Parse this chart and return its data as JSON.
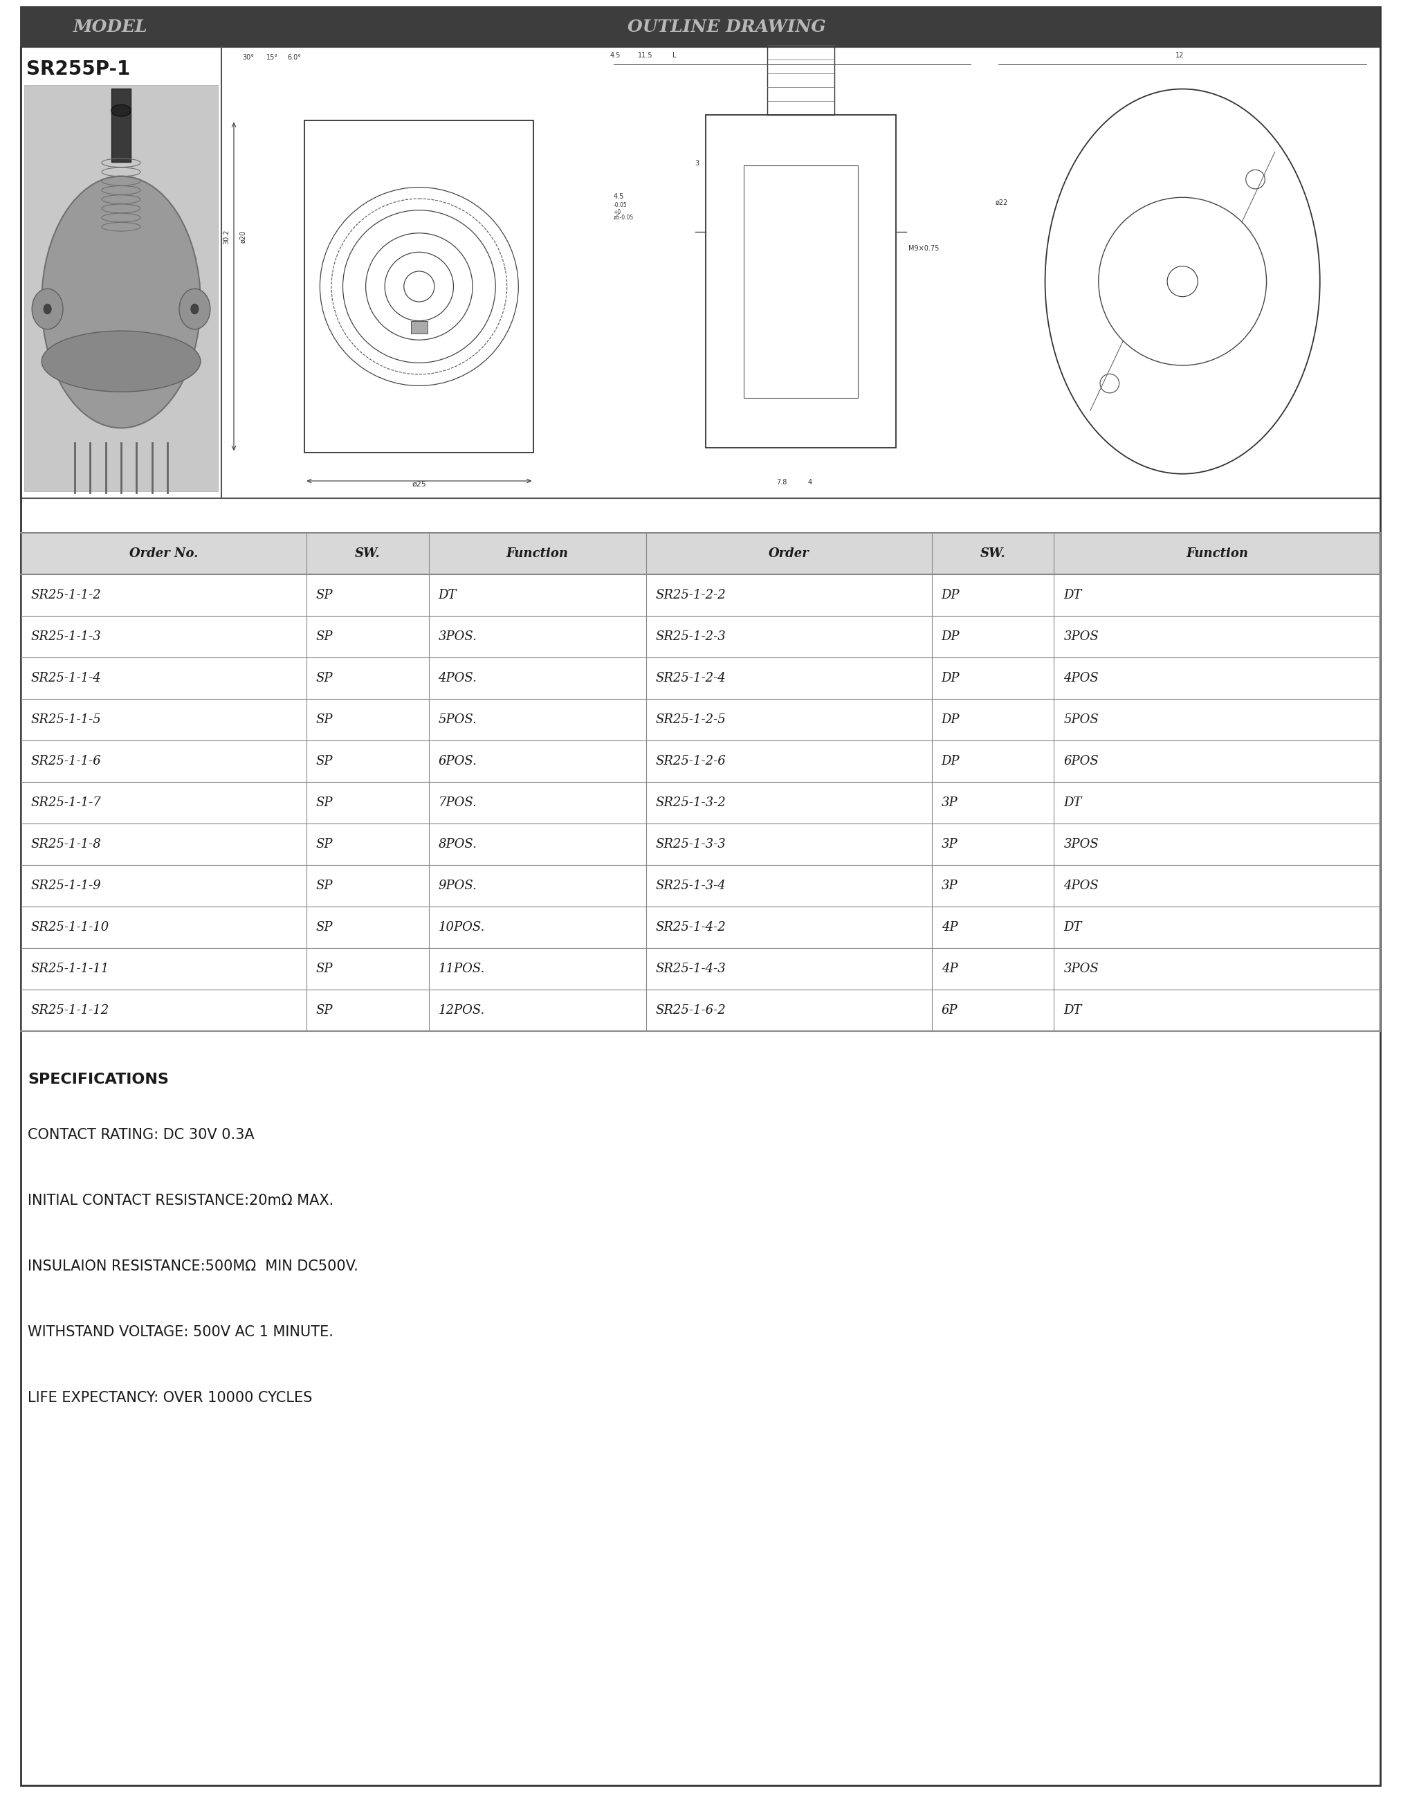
{
  "title_model": "MODEL",
  "title_drawing": "OUTLINE DRAWING",
  "model_name": "SR255P-1",
  "header_bg": "#3d3d3d",
  "header_text_color": "#b8b8b8",
  "table_headers": [
    "Order No.",
    "SW.",
    "Function",
    "Order",
    "SW.",
    "Function"
  ],
  "table_col_proportions": [
    0.21,
    0.09,
    0.16,
    0.21,
    0.09,
    0.24
  ],
  "table_rows": [
    [
      "SR25-1-1-2",
      "SP",
      "DT",
      "SR25-1-2-2",
      "DP",
      "DT"
    ],
    [
      "SR25-1-1-3",
      "SP",
      "3POS.",
      "SR25-1-2-3",
      "DP",
      "3POS"
    ],
    [
      "SR25-1-1-4",
      "SP",
      "4POS.",
      "SR25-1-2-4",
      "DP",
      "4POS"
    ],
    [
      "SR25-1-1-5",
      "SP",
      "5POS.",
      "SR25-1-2-5",
      "DP",
      "5POS"
    ],
    [
      "SR25-1-1-6",
      "SP",
      "6POS.",
      "SR25-1-2-6",
      "DP",
      "6POS"
    ],
    [
      "SR25-1-1-7",
      "SP",
      "7POS.",
      "SR25-1-3-2",
      "3P",
      "DT"
    ],
    [
      "SR25-1-1-8",
      "SP",
      "8POS.",
      "SR25-1-3-3",
      "3P",
      "3POS"
    ],
    [
      "SR25-1-1-9",
      "SP",
      "9POS.",
      "SR25-1-3-4",
      "3P",
      "4POS"
    ],
    [
      "SR25-1-1-10",
      "SP",
      "10POS.",
      "SR25-1-4-2",
      "4P",
      "DT"
    ],
    [
      "SR25-1-1-11",
      "SP",
      "11POS.",
      "SR25-1-4-3",
      "4P",
      "3POS"
    ],
    [
      "SR25-1-1-12",
      "SP",
      "12POS.",
      "SR25-1-6-2",
      "6P",
      "DT"
    ]
  ],
  "specs_title": "SPECIFICATIONS",
  "specs": [
    "CONTACT RATING: DC 30V 0.3A",
    "INITIAL CONTACT RESISTANCE:20mΩ MAX.",
    "INSULAION RESISTANCE:500MΩ  MIN DC500V.",
    "WITHSTAND VOLTAGE: 500V AC 1 MINUTE.",
    "LIFE EXPECTANCY: OVER 10000 CYCLES"
  ],
  "bg_color": "#ffffff",
  "border_color": "#555555",
  "text_color": "#1a1a1a",
  "table_line_color": "#888888",
  "table_header_bg": "#808080"
}
